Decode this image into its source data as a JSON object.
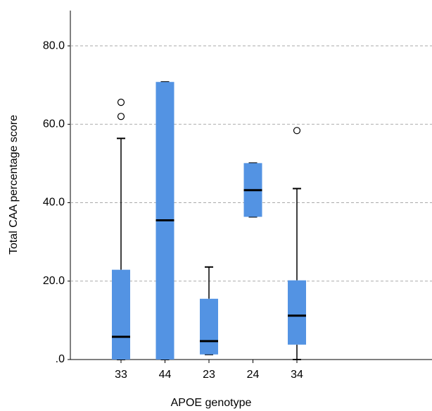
{
  "chart_data": {
    "type": "box",
    "x_label": "APOE genotype",
    "y_label": "Total CAA percentage score",
    "categories": [
      "33",
      "44",
      "23",
      "24",
      "34"
    ],
    "boxes": [
      {
        "min": 0,
        "q1": 0,
        "median": 5.8,
        "q3": 22.9,
        "max": 56.4,
        "outliers": [
          65.6,
          62.0
        ]
      },
      {
        "min": 0,
        "q1": 0,
        "median": 35.5,
        "q3": 70.8,
        "max": 70.8,
        "outliers": []
      },
      {
        "min": 1.3,
        "q1": 1.3,
        "median": 4.7,
        "q3": 15.5,
        "max": 23.6,
        "outliers": []
      },
      {
        "min": 36.4,
        "q1": 36.4,
        "median": 43.2,
        "q3": 50.1,
        "max": 50.1,
        "outliers": []
      },
      {
        "min": 0,
        "q1": 3.8,
        "median": 11.2,
        "q3": 20.2,
        "max": 43.6,
        "outliers": [
          58.4
        ]
      }
    ],
    "color": "#5393e3",
    "ylim": [
      0,
      89
    ],
    "yticks": [
      {
        "value": 0,
        "label": ".0"
      },
      {
        "value": 20,
        "label": "20.0"
      },
      {
        "value": 40,
        "label": "40.0"
      },
      {
        "value": 60,
        "label": "60.0"
      },
      {
        "value": 80,
        "label": "80.0"
      }
    ],
    "grid": true
  }
}
